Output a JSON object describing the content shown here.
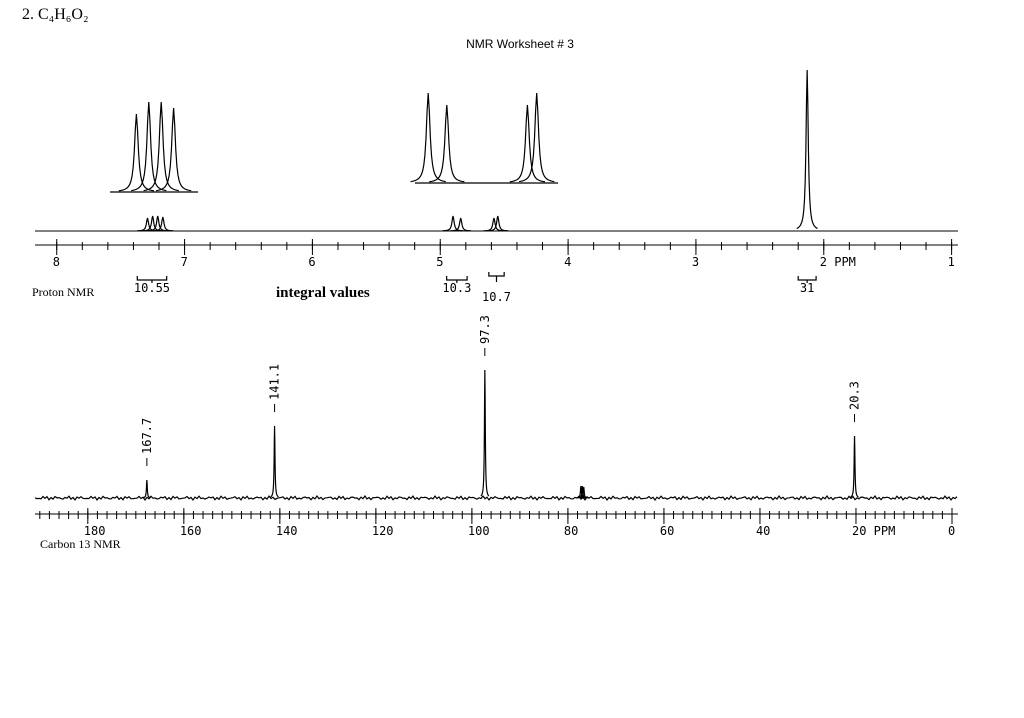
{
  "header": {
    "problem": "2. C₄H₆O₂",
    "title": "NMR Worksheet # 3"
  },
  "proton": {
    "label": "Proton NMR",
    "integral_caption": "integral values",
    "xlim": [
      8.17,
      0.95
    ],
    "xticks": [
      8,
      7,
      6,
      5,
      4,
      3,
      {
        "value": 2,
        "label": "2 PPM"
      },
      1
    ],
    "peaks": [
      {
        "shift": 7.29,
        "height": 13
      },
      {
        "shift": 7.25,
        "height": 15
      },
      {
        "shift": 7.21,
        "height": 15
      },
      {
        "shift": 7.17,
        "height": 14
      },
      {
        "shift": 4.9,
        "height": 15
      },
      {
        "shift": 4.84,
        "height": 13
      },
      {
        "shift": 4.58,
        "height": 13
      },
      {
        "shift": 4.55,
        "height": 15
      },
      {
        "shift": 2.13,
        "height": 161
      }
    ],
    "integrals": [
      {
        "value": 10.55,
        "from": 7.37,
        "to": 7.14
      },
      {
        "value": 10.3,
        "from": 4.95,
        "to": 4.79
      },
      {
        "value": 10.7,
        "from": 4.62,
        "to": 4.5
      },
      {
        "value": 31.0,
        "from": 2.2,
        "to": 2.06
      }
    ]
  },
  "carbon": {
    "label": "Carbon 13 NMR",
    "xlim": [
      191,
      -1.25
    ],
    "xticks": [
      180,
      160,
      140,
      120,
      100,
      80,
      60,
      40,
      {
        "value": 20,
        "label": "20 PPM"
      },
      0
    ],
    "peaks": [
      {
        "shift": 167.7,
        "height": 18
      },
      {
        "shift": 141.1,
        "height": 72
      },
      {
        "shift": 97.3,
        "height": 128
      },
      {
        "shift": 20.3,
        "height": 62
      }
    ],
    "solvent_peaks": [
      {
        "shift": 77.3,
        "height": 12
      },
      {
        "shift": 77.0,
        "height": 12
      },
      {
        "shift": 76.7,
        "height": 11
      }
    ]
  }
}
